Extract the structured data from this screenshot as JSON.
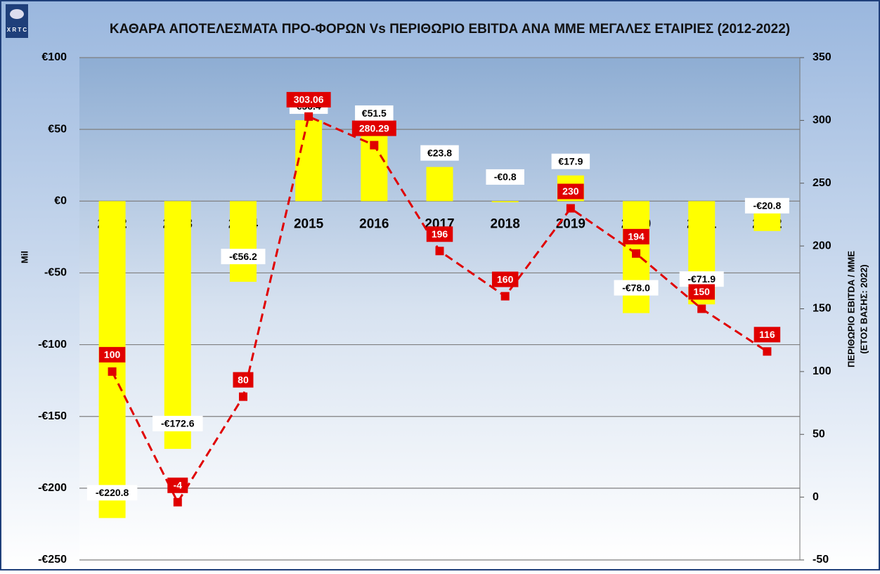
{
  "chart_data": {
    "type": "bar-line",
    "title": "ΚΑΘΑΡΑ ΑΠΟΤΕΛΕΣΜΑΤΑ ΠΡΟ-ΦΟΡΩΝ Vs ΠΕΡΙΘΩΡΙΟ EBITDA ΑΝΑ ΜΜΕ ΜΕΓΑΛΕΣ ΕΤΑΙΡΙΕΣ (2012-2022)",
    "logo": "X R T C",
    "y_label": "Mil",
    "y2_label": [
      "ΠΕΡΙΘΩΡΙΟ EBITDA / ΜΜΕ",
      "(ΕΤΟΣ ΒΑΣΗΣ: 2022)"
    ],
    "categories": [
      "2012",
      "2013",
      "2014",
      "2015",
      "2016",
      "2017",
      "2018",
      "2019",
      "2020",
      "2021",
      "2022"
    ],
    "series": [
      {
        "type": "bar",
        "color": "#ffff00",
        "values": [
          -220.8,
          -172.6,
          -56.2,
          56.4,
          51.5,
          23.8,
          -0.8,
          17.9,
          -78.0,
          -71.9,
          -20.8
        ],
        "value_labels": [
          "-€220.8",
          "-€172.6",
          "-€56.2",
          "€56.4",
          "€51.5",
          "€23.8",
          "-€0.8",
          "€17.9",
          "-€78.0",
          "-€71.9",
          "-€20.8"
        ]
      },
      {
        "type": "line",
        "axis": "y2",
        "color": "#e00000",
        "values": [
          100,
          -4,
          80,
          303.06,
          280.29,
          196,
          160,
          230,
          194,
          150,
          116
        ]
      }
    ],
    "ylim": [
      -250,
      100
    ],
    "yticks": [
      {
        "value": -250,
        "label": "-€250"
      },
      {
        "value": -200,
        "label": "-€200"
      },
      {
        "value": -150,
        "label": "-€150"
      },
      {
        "value": -100,
        "label": "-€100"
      },
      {
        "value": -50,
        "label": "-€50"
      },
      {
        "value": 0,
        "label": "€0"
      },
      {
        "value": 50,
        "label": "€50"
      },
      {
        "value": 100,
        "label": "€100"
      }
    ],
    "y2lim": [
      -50,
      350
    ],
    "y2ticks": [
      -50,
      0,
      50,
      100,
      150,
      200,
      250,
      300,
      350
    ],
    "grid": true
  }
}
